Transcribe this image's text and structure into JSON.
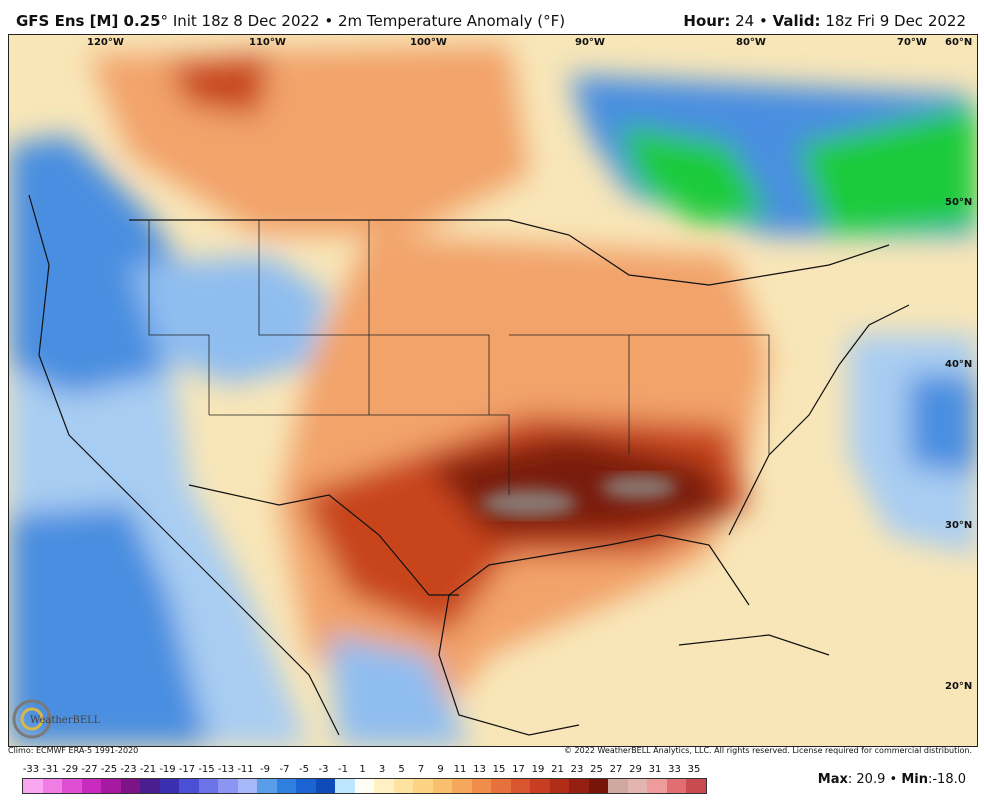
{
  "header": {
    "model": "GFS Ens [M] 0.25",
    "degree_symbol": "°",
    "init": "Init 18z 8 Dec 2022",
    "bullet": "•",
    "parameter": "2m Temperature Anomaly (°F)",
    "hour_label": "Hour:",
    "hour_value": "24",
    "valid_label": "Valid:",
    "valid_value": "18z Fri 9 Dec 2022"
  },
  "map": {
    "longitude_labels": [
      "120°W",
      "110°W",
      "100°W",
      "90°W",
      "80°W",
      "70°W",
      "60°N"
    ],
    "latitude_labels": [
      "50°N",
      "40°N",
      "30°N",
      "20°N"
    ],
    "colors": {
      "warm_strong": "#7a1a08",
      "warm_mid": "#c8451a",
      "warm_light": "#f2a36a",
      "neutral": "#f8f1d2",
      "cool_light": "#a9cdf2",
      "cool_mid": "#4a8ee0",
      "cool_strong": "#1b4fb3",
      "green": "#1ecb3a",
      "gray_extreme": "#8a7a74"
    }
  },
  "footer": {
    "climo": "Climo: ECMWF ERA-5 1991-2020",
    "copyright": "© 2022 WeatherBELL Analytics, LLC. All rights reserved. License required for commercial distribution.",
    "logo_text": "WeatherBELL"
  },
  "legend": {
    "labels": [
      "-33",
      "-31",
      "-29",
      "-27",
      "-25",
      "-23",
      "-21",
      "-19",
      "-17",
      "-15",
      "-13",
      "-11",
      "-9",
      "-7",
      "-5",
      "-3",
      "-1",
      "1",
      "3",
      "5",
      "7",
      "9",
      "11",
      "13",
      "15",
      "17",
      "19",
      "21",
      "23",
      "25",
      "27",
      "29",
      "31",
      "33",
      "35"
    ],
    "colors": [
      "#f9a7f0",
      "#f07de4",
      "#de4fd4",
      "#c92bbf",
      "#a51aa0",
      "#7d1486",
      "#4a1e8e",
      "#3a2fb0",
      "#4b4fd6",
      "#6b73e8",
      "#8c96f2",
      "#a7b8f8",
      "#5a9de8",
      "#2f7fe0",
      "#1a63d2",
      "#0f4bb8",
      "#bfe6ff",
      "#fdfdf5",
      "#fff1c4",
      "#fde39f",
      "#fbd383",
      "#f8bf6e",
      "#f5a85c",
      "#f08d4b",
      "#e6713c",
      "#d9552f",
      "#c73e22",
      "#b02d18",
      "#951f10",
      "#78150a",
      "#cfa9a0",
      "#e2b5b0",
      "#ee9b9b",
      "#e06e73",
      "#c94b50"
    ],
    "max_label": "Max",
    "max_value": "20.9",
    "min_label": "Min",
    "min_value": "-18.0"
  }
}
